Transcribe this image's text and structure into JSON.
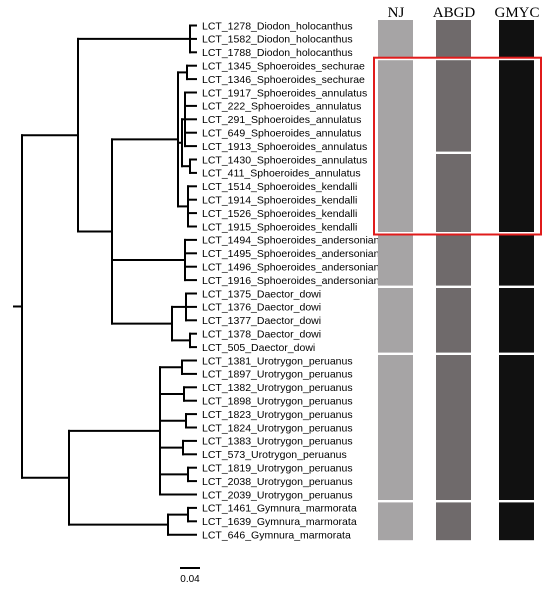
{
  "figure": {
    "columns": [
      {
        "key": "nj",
        "label": "NJ",
        "color": "#a6a4a5"
      },
      {
        "key": "abgd",
        "label": "ABGD",
        "color": "#6f6a6b"
      },
      {
        "key": "gmyc",
        "label": "GMYC",
        "color": "#111111"
      }
    ],
    "highlight_color": "#e01b1b",
    "scale_label": "0.04",
    "taxa": [
      "LCT_1278_Diodon_holocanthus",
      "LCT_1582_Diodon_holocanthus",
      "LCT_1788_Diodon_holocanthus",
      "LCT_1345_Sphoeroides_sechurae",
      "LCT_1346_Sphoeroides_sechurae",
      "LCT_1917_Sphoeroides_annulatus",
      "LCT_222_Sphoeroides_annulatus",
      "LCT_291_Sphoeroides_annulatus",
      "LCT_649_Sphoeroides_annulatus",
      "LCT_1913_Sphoeroides_annulatus",
      "LCT_1430_Sphoeroides_annulatus",
      "LCT_411_Sphoeroides_annulatus",
      "LCT_1514_Sphoeroides_kendalli",
      "LCT_1914_Sphoeroides_kendalli",
      "LCT_1526_Sphoeroides_kendalli",
      "LCT_1915_Sphoeroides_kendalli",
      "LCT_1494_Sphoeroides_andersonianus",
      "LCT_1495_Sphoeroides_andersonianus",
      "LCT_1496_Sphoeroides_andersonianus",
      "LCT_1916_Sphoeroides_andersonianus",
      "LCT_1375_Daector_dowi",
      "LCT_1376_Daector_dowi",
      "LCT_1377_Daector_dowi",
      "LCT_1378_Daector_dowi",
      "LCT_505_Daector_dowi",
      "LCT_1381_Urotrygon_peruanus",
      "LCT_1897_Urotrygon_peruanus",
      "LCT_1382_Urotrygon_peruanus",
      "LCT_1898_Urotrygon_peruanus",
      "LCT_1823_Urotrygon_peruanus",
      "LCT_1824_Urotrygon_peruanus",
      "LCT_1383_Urotrygon_peruanus",
      "LCT_573_Urotrygon_peruanus",
      "LCT_1819_Urotrygon_peruanus",
      "LCT_2038_Urotrygon_peruanus",
      "LCT_2039_Urotrygon_peruanus",
      "LCT_1461_Gymnura_marmorata",
      "LCT_1639_Gymnura_marmorata",
      "LCT_646_Gymnura_marmorata"
    ],
    "species_groups": {
      "nj": [
        [
          0,
          2
        ],
        [
          3,
          15
        ],
        [
          16,
          19
        ],
        [
          20,
          24
        ],
        [
          25,
          35
        ],
        [
          36,
          38
        ]
      ],
      "abgd": [
        [
          0,
          2
        ],
        [
          3,
          9
        ],
        [
          10,
          15
        ],
        [
          16,
          19
        ],
        [
          20,
          24
        ],
        [
          25,
          35
        ],
        [
          36,
          38
        ]
      ],
      "gmyc": [
        [
          0,
          2
        ],
        [
          3,
          15
        ],
        [
          16,
          19
        ],
        [
          20,
          24
        ],
        [
          25,
          35
        ],
        [
          36,
          38
        ]
      ]
    },
    "highlighted_taxa": [
      3,
      15
    ]
  }
}
